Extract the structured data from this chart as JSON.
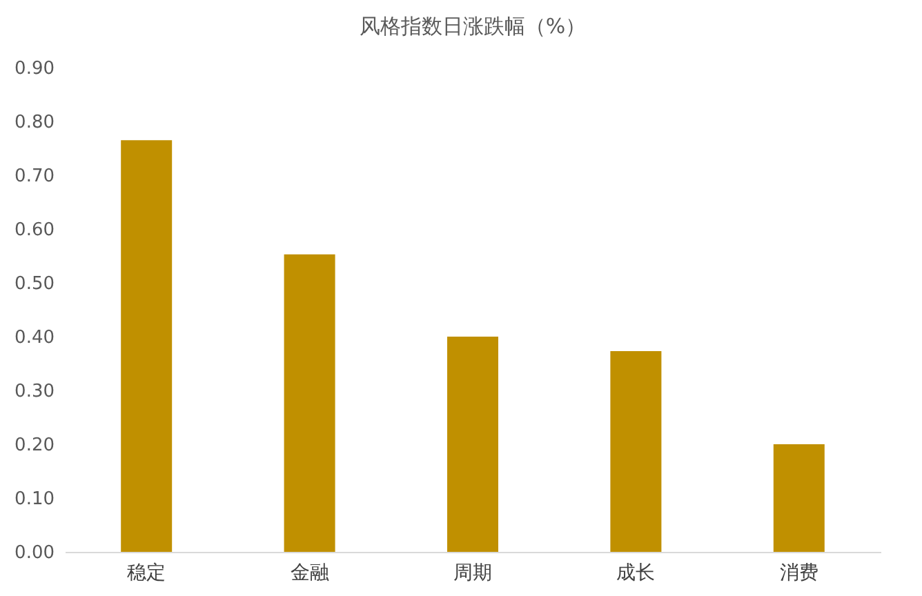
{
  "chart_data": {
    "type": "bar",
    "title": "风格指数日涨跌幅（%）",
    "categories": [
      "稳定",
      "金融",
      "周期",
      "成长",
      "消费"
    ],
    "values": [
      0.765,
      0.553,
      0.4,
      0.373,
      0.2
    ],
    "color": "#c09000",
    "ylim": [
      0,
      0.9
    ],
    "yticks": [
      {
        "value": 0,
        "label": "0.00"
      },
      {
        "value": 0.1,
        "label": "0.10"
      },
      {
        "value": 0.2,
        "label": "0.20"
      },
      {
        "value": 0.3,
        "label": "0.30"
      },
      {
        "value": 0.4,
        "label": "0.40"
      },
      {
        "value": 0.5,
        "label": "0.50"
      },
      {
        "value": 0.6,
        "label": "0.60"
      },
      {
        "value": 0.7,
        "label": "0.70"
      },
      {
        "value": 0.8,
        "label": "0.80"
      },
      {
        "value": 0.9,
        "label": "0.90"
      }
    ],
    "grid": false
  }
}
